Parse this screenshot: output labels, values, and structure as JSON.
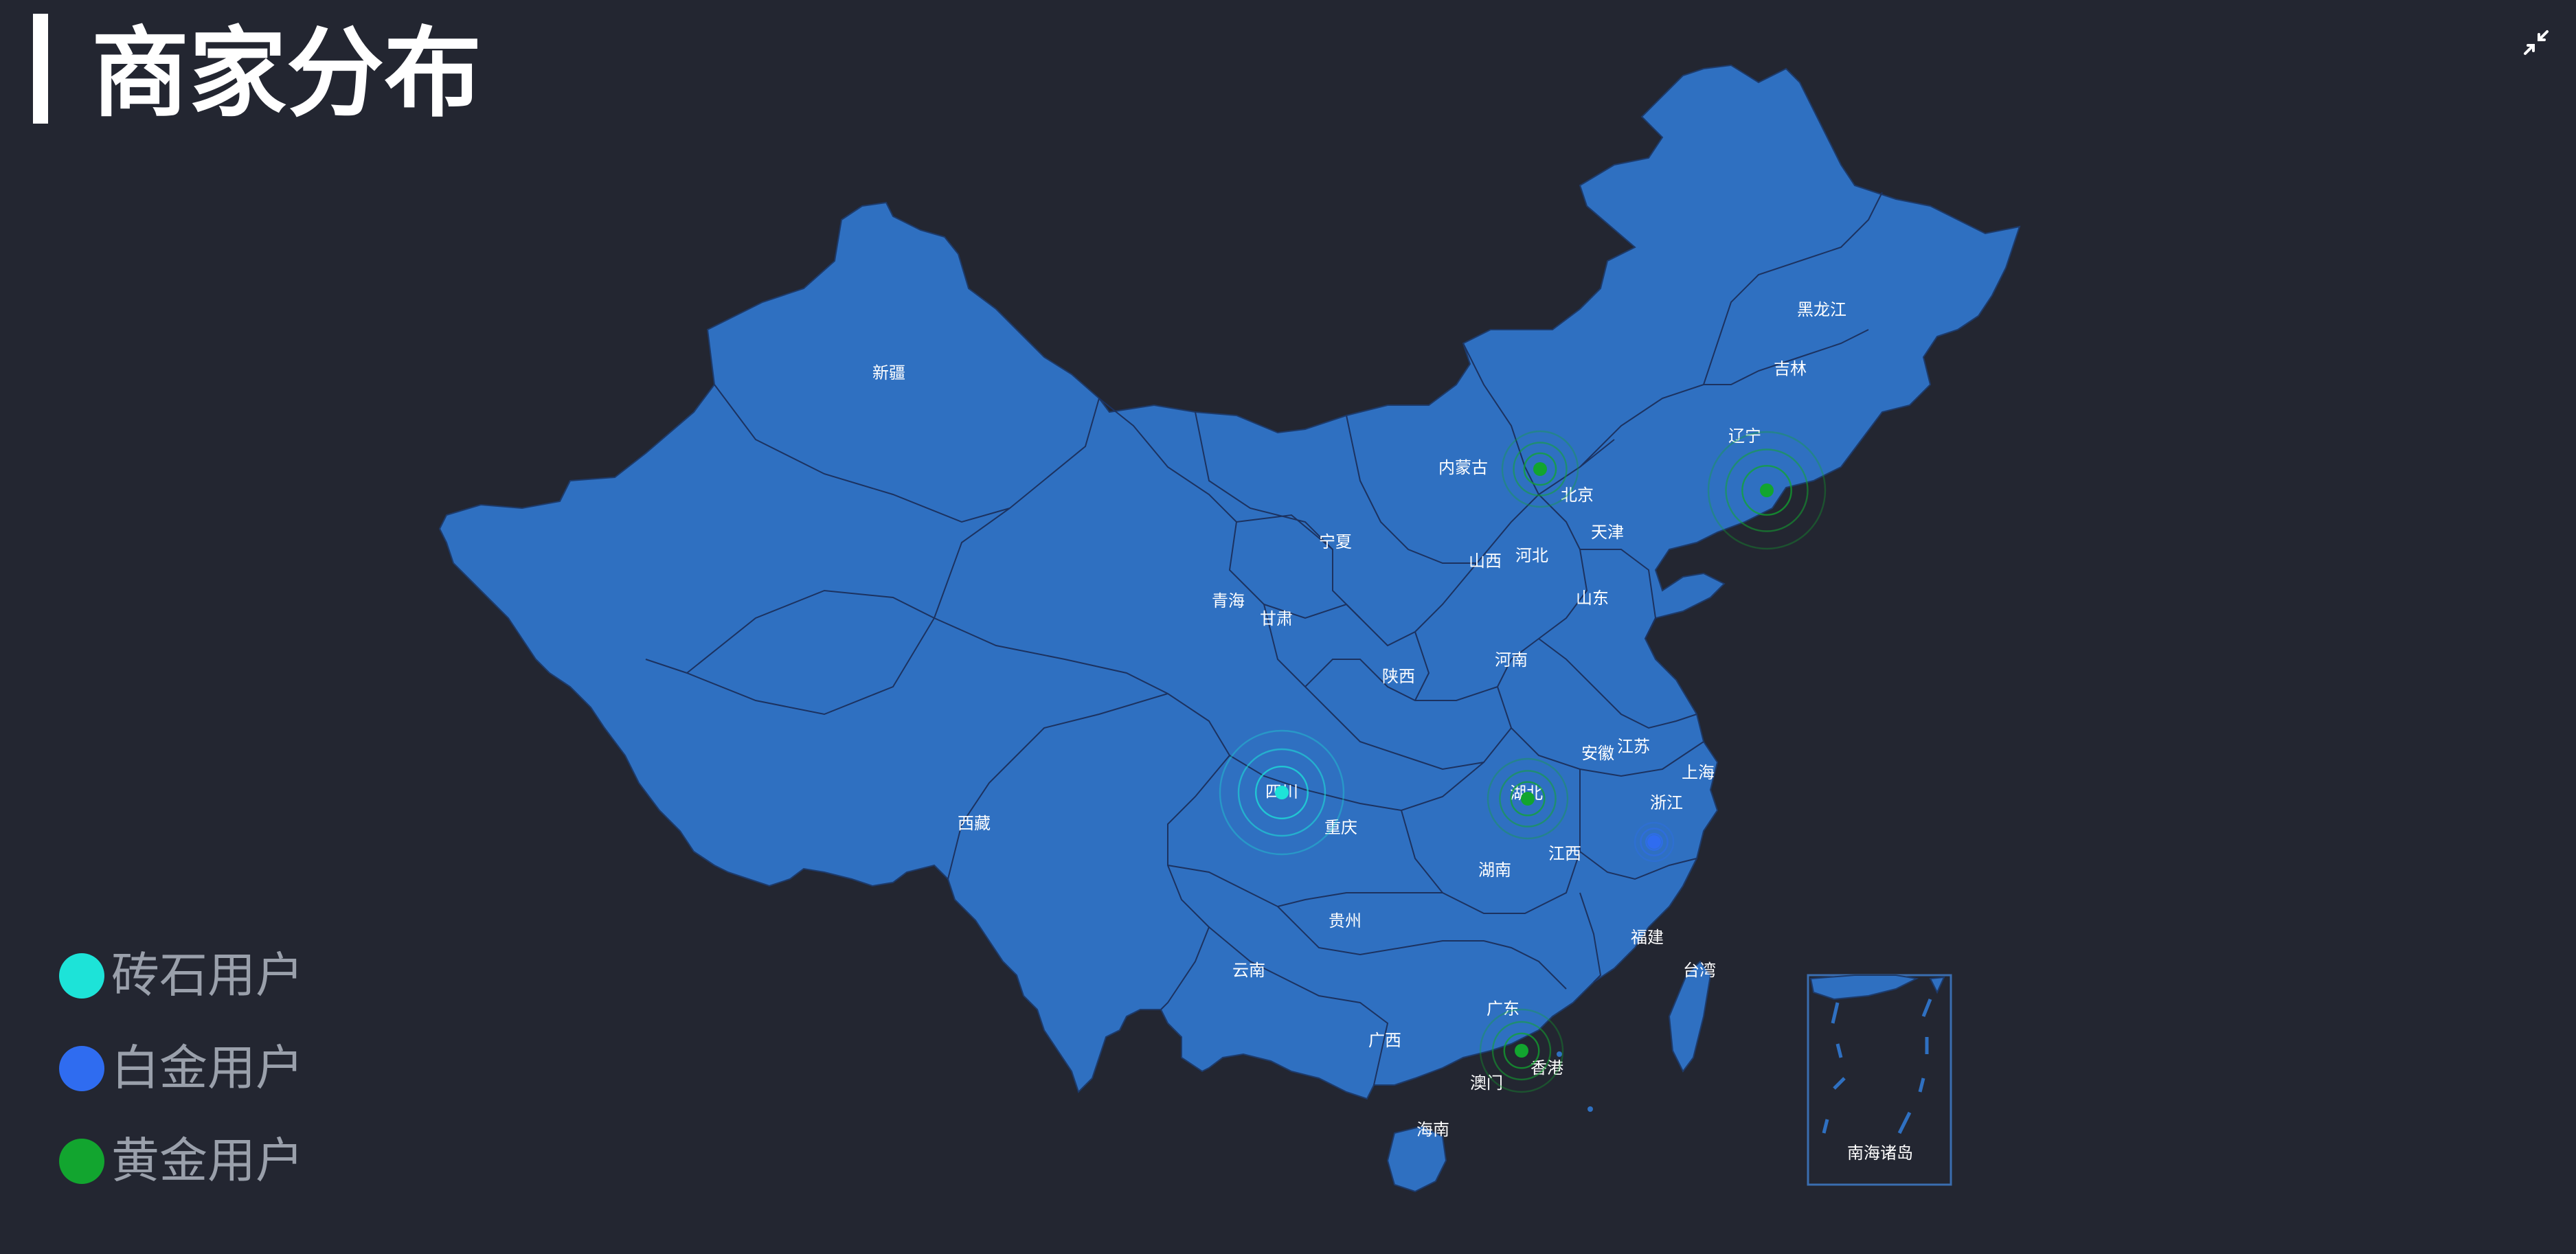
{
  "header": {
    "title": "商家分布"
  },
  "toolbar": {
    "shrink_icon": "shrink-icon"
  },
  "legend": {
    "items": [
      {
        "label": "砖石用户",
        "color": "#1de3d8"
      },
      {
        "label": "白金用户",
        "color": "#2f6cf0"
      },
      {
        "label": "黄金用户",
        "color": "#12a52f"
      }
    ]
  },
  "map": {
    "fill_color": "#2f70c1",
    "provinces": [
      "黑龙江",
      "吉林",
      "辽宁",
      "内蒙古",
      "北京",
      "天津",
      "河北",
      "山西",
      "山东",
      "宁夏",
      "青海",
      "甘肃",
      "陕西",
      "河南",
      "江苏",
      "安徽",
      "上海",
      "湖北",
      "四川",
      "浙江",
      "重庆",
      "江西",
      "湖南",
      "贵州",
      "福建",
      "台湾",
      "云南",
      "广西",
      "广东",
      "香港",
      "澳门",
      "海南",
      "新疆",
      "西藏"
    ],
    "inset_label": "南海诸岛",
    "markers": [
      {
        "province": "内蒙古",
        "category": "黄金用户",
        "color": "#12a52f"
      },
      {
        "province": "辽宁",
        "category": "黄金用户",
        "color": "#12a52f"
      },
      {
        "province": "四川",
        "category": "砖石用户",
        "color": "#1de3d8"
      },
      {
        "province": "湖北",
        "category": "黄金用户",
        "color": "#12a52f"
      },
      {
        "province": "浙江",
        "category": "白金用户",
        "color": "#2f6cf0"
      },
      {
        "province": "广东",
        "category": "黄金用户",
        "color": "#12a52f"
      }
    ]
  }
}
